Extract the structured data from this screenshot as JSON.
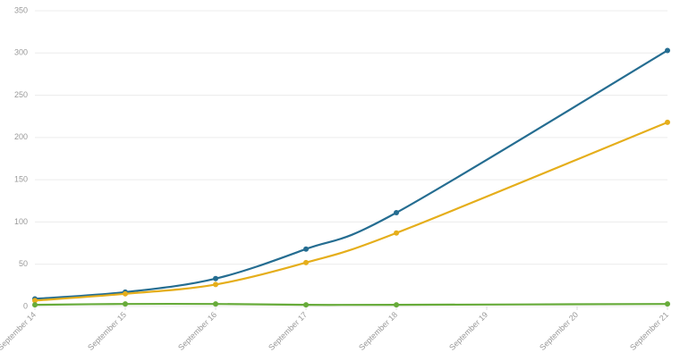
{
  "chart_data": {
    "type": "line",
    "x": [
      14,
      15,
      16,
      17,
      18,
      21
    ],
    "xlim": [
      14,
      21
    ],
    "xticks": [
      {
        "value": 14,
        "label": "September 14"
      },
      {
        "value": 15,
        "label": "September 15"
      },
      {
        "value": 16,
        "label": "September 16"
      },
      {
        "value": 17,
        "label": "September 17"
      },
      {
        "value": 18,
        "label": "September 18"
      },
      {
        "value": 19,
        "label": "September 19"
      },
      {
        "value": 20,
        "label": "September 20"
      },
      {
        "value": 21,
        "label": "September 21"
      }
    ],
    "ylim": [
      0,
      350
    ],
    "yticks": [
      0,
      50,
      100,
      150,
      200,
      250,
      300,
      350
    ],
    "grid": true,
    "series": [
      {
        "color": "#256d91",
        "values": [
          9,
          17,
          33,
          68,
          111,
          303
        ]
      },
      {
        "color": "#e5ae1b",
        "values": [
          7,
          15,
          26,
          52,
          87,
          218
        ]
      },
      {
        "color": "#67ab3a",
        "values": [
          2,
          3,
          3,
          2,
          2,
          3
        ]
      }
    ]
  }
}
